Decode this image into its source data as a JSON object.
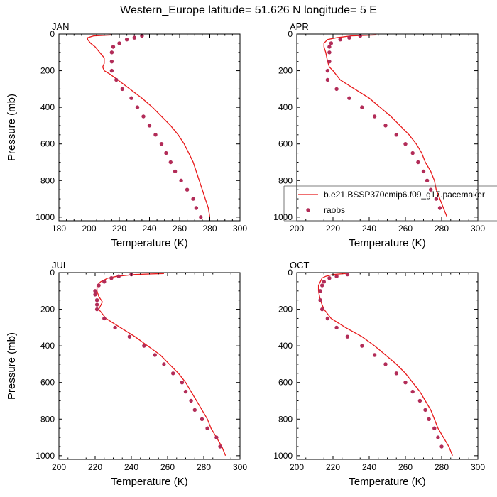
{
  "figure": {
    "title": "Western_Europe  latitude= 51.626 N longitude= 5 E"
  },
  "chart_data": [
    {
      "type": "line",
      "panel_label": "JAN",
      "xlabel": "Temperature (K)",
      "ylabel": "Pressure (mb)",
      "xlim": [
        180,
        300
      ],
      "ylim": [
        0,
        1020
      ],
      "y_reversed": true,
      "xticks": [
        180,
        200,
        220,
        240,
        260,
        280,
        300
      ],
      "yticks": [
        0,
        200,
        400,
        600,
        800,
        1000
      ],
      "grid": false,
      "legend": null,
      "series": [
        {
          "kind": "line",
          "color": "#e8191a",
          "points": [
            [
              215,
              5
            ],
            [
              203,
              10
            ],
            [
              199,
              20
            ],
            [
              199,
              30
            ],
            [
              201,
              50
            ],
            [
              204,
              70
            ],
            [
              207,
              100
            ],
            [
              210,
              130
            ],
            [
              210,
              160
            ],
            [
              209,
              180
            ],
            [
              210,
              200
            ],
            [
              214,
              220
            ],
            [
              219,
              250
            ],
            [
              227,
              300
            ],
            [
              235,
              350
            ],
            [
              242,
              400
            ],
            [
              248,
              450
            ],
            [
              254,
              500
            ],
            [
              259,
              550
            ],
            [
              263,
              600
            ],
            [
              266,
              650
            ],
            [
              269,
              700
            ],
            [
              271,
              750
            ],
            [
              273,
              800
            ],
            [
              275,
              850
            ],
            [
              277,
              900
            ],
            [
              279,
              950
            ],
            [
              280,
              1000
            ]
          ]
        },
        {
          "kind": "scatter",
          "color": "#b22c58",
          "points": [
            [
              235,
              10
            ],
            [
              230,
              20
            ],
            [
              225,
              30
            ],
            [
              220,
              50
            ],
            [
              216,
              70
            ],
            [
              215,
              100
            ],
            [
              215,
              150
            ],
            [
              215,
              200
            ],
            [
              218,
              250
            ],
            [
              222,
              300
            ],
            [
              228,
              350
            ],
            [
              232,
              400
            ],
            [
              236,
              450
            ],
            [
              240,
              500
            ],
            [
              244,
              550
            ],
            [
              248,
              600
            ],
            [
              251,
              650
            ],
            [
              254,
              700
            ],
            [
              257,
              750
            ],
            [
              261,
              800
            ],
            [
              265,
              850
            ],
            [
              269,
              900
            ],
            [
              271,
              950
            ],
            [
              274,
              1000
            ]
          ]
        }
      ]
    },
    {
      "type": "line",
      "panel_label": "APR",
      "xlabel": "Temperature (K)",
      "ylabel": "",
      "xlim": [
        200,
        300
      ],
      "ylim": [
        0,
        1020
      ],
      "y_reversed": true,
      "xticks": [
        200,
        220,
        240,
        260,
        280,
        300
      ],
      "yticks": [
        0,
        200,
        400,
        600,
        800,
        1000
      ],
      "grid": false,
      "legend": {
        "placement": "bottom-right",
        "entries": [
          {
            "label": "b.e21.BSSP370cmip6.f09_g17.pacemaker",
            "kind": "line",
            "color": "#e8191a"
          },
          {
            "label": "raobs",
            "kind": "marker",
            "color": "#b22c58"
          }
        ]
      },
      "series": [
        {
          "kind": "line",
          "color": "#e8191a",
          "points": [
            [
              244,
              5
            ],
            [
              230,
              10
            ],
            [
              222,
              20
            ],
            [
              217,
              30
            ],
            [
              215,
              50
            ],
            [
              215,
              70
            ],
            [
              216,
              100
            ],
            [
              217,
              150
            ],
            [
              218,
              180
            ],
            [
              220,
              200
            ],
            [
              224,
              250
            ],
            [
              232,
              300
            ],
            [
              240,
              350
            ],
            [
              246,
              400
            ],
            [
              252,
              450
            ],
            [
              257,
              500
            ],
            [
              262,
              550
            ],
            [
              266,
              600
            ],
            [
              269,
              650
            ],
            [
              271,
              700
            ],
            [
              274,
              750
            ],
            [
              276,
              800
            ],
            [
              277,
              850
            ],
            [
              279,
              900
            ],
            [
              281,
              950
            ],
            [
              283,
              1000
            ]
          ]
        },
        {
          "kind": "scatter",
          "color": "#b22c58",
          "points": [
            [
              235,
              10
            ],
            [
              229,
              20
            ],
            [
              224,
              30
            ],
            [
              219,
              50
            ],
            [
              218,
              70
            ],
            [
              218,
              100
            ],
            [
              218,
              150
            ],
            [
              217,
              200
            ],
            [
              217,
              250
            ],
            [
              222,
              300
            ],
            [
              229,
              350
            ],
            [
              236,
              400
            ],
            [
              243,
              450
            ],
            [
              249,
              500
            ],
            [
              255,
              550
            ],
            [
              260,
              600
            ],
            [
              264,
              650
            ],
            [
              267,
              700
            ],
            [
              270,
              750
            ],
            [
              272,
              800
            ],
            [
              274,
              850
            ],
            [
              277,
              900
            ],
            [
              279,
              950
            ]
          ]
        }
      ]
    },
    {
      "type": "line",
      "panel_label": "JUL",
      "xlabel": "Temperature (K)",
      "ylabel": "Pressure (mb)",
      "xlim": [
        200,
        300
      ],
      "ylim": [
        0,
        1020
      ],
      "y_reversed": true,
      "xticks": [
        200,
        220,
        240,
        260,
        280,
        300
      ],
      "yticks": [
        0,
        200,
        400,
        600,
        800,
        1000
      ],
      "grid": false,
      "legend": null,
      "series": [
        {
          "kind": "line",
          "color": "#e8191a",
          "points": [
            [
              258,
              5
            ],
            [
              242,
              10
            ],
            [
              232,
              20
            ],
            [
              227,
              30
            ],
            [
              223,
              50
            ],
            [
              221,
              70
            ],
            [
              221,
              100
            ],
            [
              222,
              130
            ],
            [
              224,
              160
            ],
            [
              223,
              180
            ],
            [
              222,
              200
            ],
            [
              226,
              250
            ],
            [
              234,
              300
            ],
            [
              242,
              350
            ],
            [
              249,
              400
            ],
            [
              256,
              450
            ],
            [
              261,
              500
            ],
            [
              266,
              550
            ],
            [
              270,
              600
            ],
            [
              273,
              650
            ],
            [
              276,
              700
            ],
            [
              279,
              750
            ],
            [
              282,
              800
            ],
            [
              284,
              850
            ],
            [
              287,
              900
            ],
            [
              290,
              950
            ],
            [
              292,
              1000
            ]
          ]
        },
        {
          "kind": "scatter",
          "color": "#b22c58",
          "points": [
            [
              240,
              10
            ],
            [
              233,
              20
            ],
            [
              229,
              30
            ],
            [
              225,
              50
            ],
            [
              222,
              70
            ],
            [
              220,
              100
            ],
            [
              220,
              120
            ],
            [
              221,
              150
            ],
            [
              221,
              175
            ],
            [
              221,
              200
            ],
            [
              225,
              250
            ],
            [
              231,
              300
            ],
            [
              239,
              350
            ],
            [
              247,
              400
            ],
            [
              253,
              450
            ],
            [
              258,
              500
            ],
            [
              263,
              550
            ],
            [
              268,
              600
            ],
            [
              270,
              650
            ],
            [
              273,
              700
            ],
            [
              275,
              750
            ],
            [
              279,
              800
            ],
            [
              282,
              850
            ],
            [
              287,
              900
            ],
            [
              289,
              950
            ]
          ]
        }
      ]
    },
    {
      "type": "line",
      "panel_label": "OCT",
      "xlabel": "Temperature (K)",
      "ylabel": "",
      "xlim": [
        200,
        300
      ],
      "ylim": [
        0,
        1020
      ],
      "y_reversed": true,
      "xticks": [
        200,
        220,
        240,
        260,
        280,
        300
      ],
      "yticks": [
        0,
        200,
        400,
        600,
        800,
        1000
      ],
      "grid": false,
      "legend": null,
      "series": [
        {
          "kind": "line",
          "color": "#e8191a",
          "points": [
            [
              227,
              5
            ],
            [
              220,
              10
            ],
            [
              216,
              20
            ],
            [
              214,
              30
            ],
            [
              213,
              50
            ],
            [
              212,
              70
            ],
            [
              212,
              100
            ],
            [
              213,
              150
            ],
            [
              215,
              200
            ],
            [
              219,
              250
            ],
            [
              227,
              300
            ],
            [
              236,
              350
            ],
            [
              243,
              400
            ],
            [
              249,
              450
            ],
            [
              255,
              500
            ],
            [
              260,
              550
            ],
            [
              264,
              600
            ],
            [
              268,
              650
            ],
            [
              271,
              700
            ],
            [
              274,
              750
            ],
            [
              276,
              800
            ],
            [
              278,
              850
            ],
            [
              281,
              900
            ],
            [
              284,
              950
            ],
            [
              286,
              1000
            ]
          ]
        },
        {
          "kind": "scatter",
          "color": "#b22c58",
          "points": [
            [
              228,
              10
            ],
            [
              222,
              20
            ],
            [
              218,
              30
            ],
            [
              215,
              50
            ],
            [
              214,
              70
            ],
            [
              213,
              100
            ],
            [
              213,
              150
            ],
            [
              214,
              200
            ],
            [
              217,
              250
            ],
            [
              222,
              300
            ],
            [
              228,
              350
            ],
            [
              236,
              400
            ],
            [
              243,
              450
            ],
            [
              249,
              500
            ],
            [
              255,
              550
            ],
            [
              260,
              600
            ],
            [
              264,
              650
            ],
            [
              268,
              700
            ],
            [
              271,
              750
            ],
            [
              273,
              800
            ],
            [
              276,
              850
            ],
            [
              278,
              900
            ],
            [
              280,
              950
            ]
          ]
        }
      ]
    }
  ]
}
